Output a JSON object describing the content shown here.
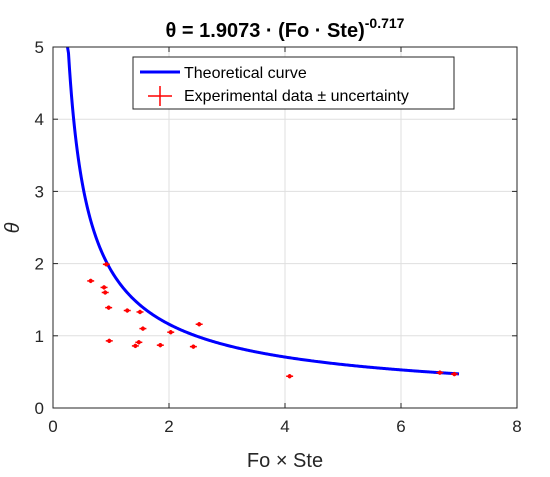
{
  "chart_data": {
    "type": "line",
    "title": {
      "prefix": "θ = 1.9073 · (Fo · Ste)",
      "exponent": "-0.717"
    },
    "xlabel": "Fo × Ste",
    "ylabel": "θ",
    "xlim": [
      0,
      8
    ],
    "ylim": [
      0,
      5
    ],
    "xticks": [
      0,
      2,
      4,
      6,
      8
    ],
    "yticks": [
      0,
      1,
      2,
      3,
      4,
      5
    ],
    "grid": true,
    "legend_position": "top",
    "series": [
      {
        "name": "Theoretical curve",
        "kind": "line",
        "color": "#0000FF",
        "equation": {
          "coefficient": 1.9073,
          "exponent": -0.717
        },
        "x_range": [
          0.25,
          7.0
        ]
      },
      {
        "name": "Experimental data ± uncertainty",
        "kind": "errorbar",
        "color": "#FF0000",
        "x_uncertainty": 0.06,
        "y_uncertainty": 0.03,
        "points": [
          {
            "x": 0.65,
            "y": 1.76
          },
          {
            "x": 0.88,
            "y": 1.67
          },
          {
            "x": 0.9,
            "y": 1.6
          },
          {
            "x": 0.92,
            "y": 1.99
          },
          {
            "x": 0.96,
            "y": 1.39
          },
          {
            "x": 0.97,
            "y": 0.93
          },
          {
            "x": 1.28,
            "y": 1.35
          },
          {
            "x": 1.42,
            "y": 0.86
          },
          {
            "x": 1.48,
            "y": 0.91
          },
          {
            "x": 1.5,
            "y": 1.33
          },
          {
            "x": 1.55,
            "y": 1.1
          },
          {
            "x": 1.85,
            "y": 0.87
          },
          {
            "x": 2.03,
            "y": 1.05
          },
          {
            "x": 2.42,
            "y": 0.85
          },
          {
            "x": 2.52,
            "y": 1.16
          },
          {
            "x": 4.08,
            "y": 0.44
          },
          {
            "x": 6.67,
            "y": 0.49
          },
          {
            "x": 6.92,
            "y": 0.47
          }
        ]
      }
    ]
  }
}
